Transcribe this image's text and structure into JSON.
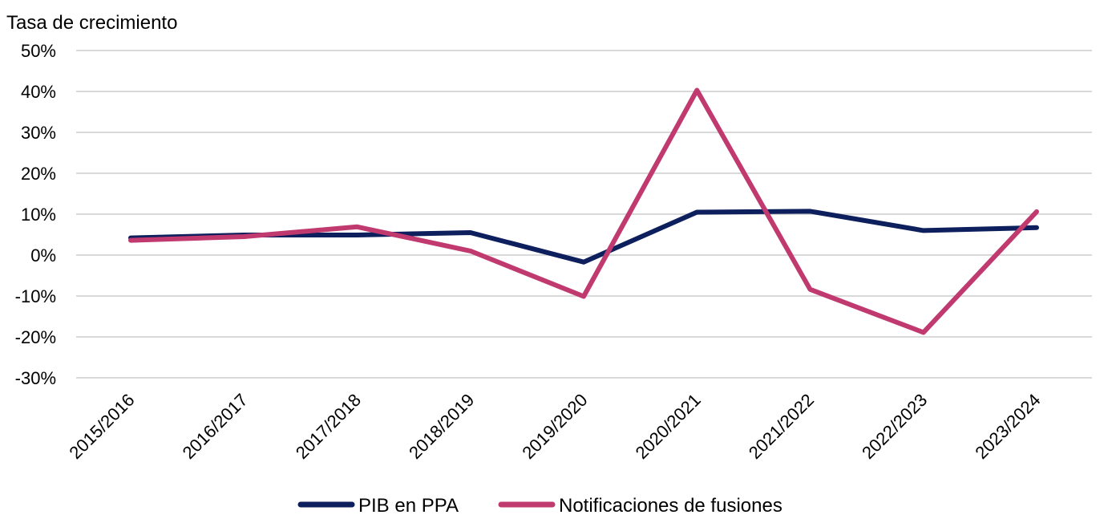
{
  "chart_data": {
    "type": "line",
    "ylabel": "Tasa de crecimiento",
    "ylim": [
      -30,
      50
    ],
    "y_tick_step": 10,
    "y_tick_labels": [
      "50%",
      "40%",
      "30%",
      "20%",
      "10%",
      "0%",
      "-10%",
      "-20%",
      "-30%"
    ],
    "categories": [
      "2015/2016",
      "2016/2017",
      "2017/2018",
      "2018/2019",
      "2019/2020",
      "2020/2021",
      "2021/2022",
      "2022/2023",
      "2023/2024"
    ],
    "grid": true,
    "legend_position": "bottom",
    "series": [
      {
        "name": "PIB en PPA",
        "color": "#0d1f5c",
        "values": [
          4.2,
          4.9,
          4.9,
          5.5,
          -1.7,
          10.5,
          10.7,
          6.0,
          6.7
        ]
      },
      {
        "name": "Notificaciones de fusiones",
        "color": "#c0396f",
        "values": [
          3.6,
          4.5,
          6.9,
          1.0,
          -10.1,
          40.3,
          -8.4,
          -18.9,
          10.6
        ]
      }
    ]
  }
}
